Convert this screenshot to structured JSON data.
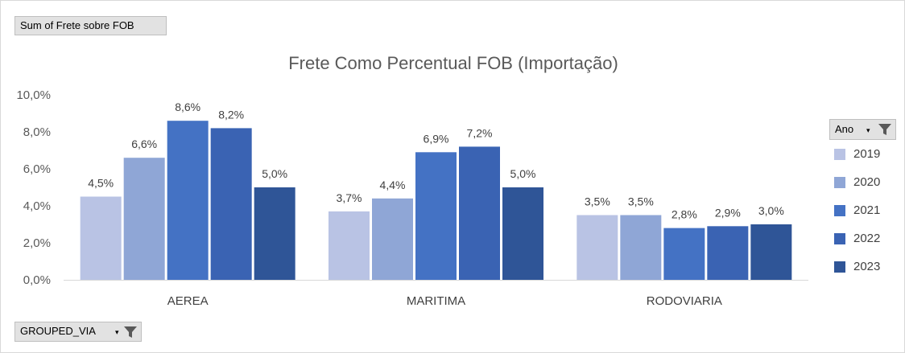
{
  "pivot": {
    "value_field": "Sum of Frete sobre FOB",
    "axis_field": "GROUPED_VIA",
    "legend_field": "Ano"
  },
  "colors": {
    "2019": "#b9c3e4",
    "2020": "#8fa6d6",
    "2021": "#4472c4",
    "2022": "#3a63b3",
    "2023": "#2f5597"
  },
  "chart_data": {
    "type": "bar",
    "title": "Frete Como Percentual FOB (Importação)",
    "categories": [
      "AEREA",
      "MARITIMA",
      "RODOVIARIA"
    ],
    "series": [
      {
        "name": "2019",
        "values": [
          4.5,
          3.7,
          3.5
        ],
        "labels": [
          "4,5%",
          "3,7%",
          "3,5%"
        ]
      },
      {
        "name": "2020",
        "values": [
          6.6,
          4.4,
          3.5
        ],
        "labels": [
          "6,6%",
          "4,4%",
          "3,5%"
        ]
      },
      {
        "name": "2021",
        "values": [
          8.6,
          6.9,
          2.8
        ],
        "labels": [
          "8,6%",
          "6,9%",
          "2,8%"
        ]
      },
      {
        "name": "2022",
        "values": [
          8.2,
          7.2,
          2.9
        ],
        "labels": [
          "8,2%",
          "7,2%",
          "2,9%"
        ]
      },
      {
        "name": "2023",
        "values": [
          5.0,
          5.0,
          3.0
        ],
        "labels": [
          "5,0%",
          "5,0%",
          "3,0%"
        ]
      }
    ],
    "yticks": [
      0,
      2,
      4,
      6,
      8,
      10
    ],
    "ytick_labels": [
      "0,0%",
      "2,0%",
      "4,0%",
      "6,0%",
      "8,0%",
      "10,0%"
    ],
    "ylim": [
      0,
      10
    ],
    "grid": false,
    "legend_position": "right"
  }
}
